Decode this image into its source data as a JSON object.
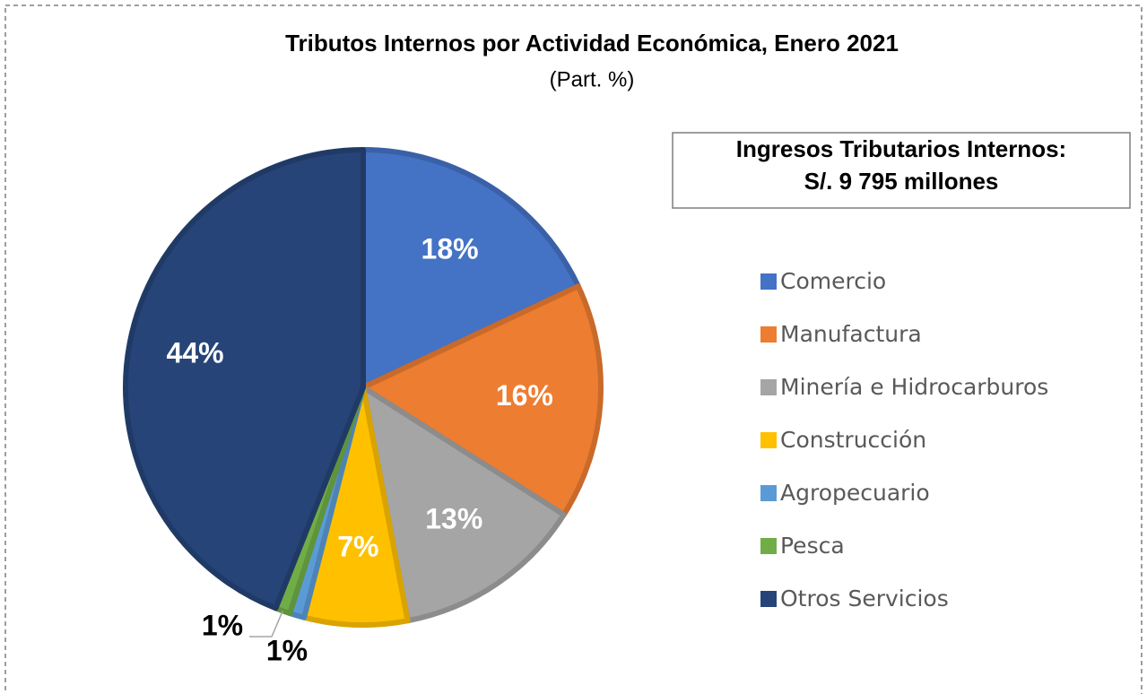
{
  "chart_data": {
    "type": "pie",
    "title": "Tributos Internos por Actividad Económica, Enero 2021",
    "subtitle": "(Part. %)",
    "annotation": [
      "Ingresos Tributarios Internos:",
      "S/. 9 795 millones"
    ],
    "categories": [
      "Comercio",
      "Manufactura",
      "Minería e Hidrocarburos",
      "Construcción",
      "Agropecuario",
      "Pesca",
      "Otros Servicios"
    ],
    "values": [
      18,
      16,
      13,
      7,
      1,
      1,
      44
    ],
    "value_labels": [
      "18%",
      "16%",
      "13%",
      "7%",
      "1%",
      "1%",
      "44%"
    ],
    "colors": [
      "#4472c4",
      "#ed7d31",
      "#a5a5a5",
      "#ffc000",
      "#5b9bd5",
      "#70ad47",
      "#264478"
    ],
    "legend": "right"
  }
}
